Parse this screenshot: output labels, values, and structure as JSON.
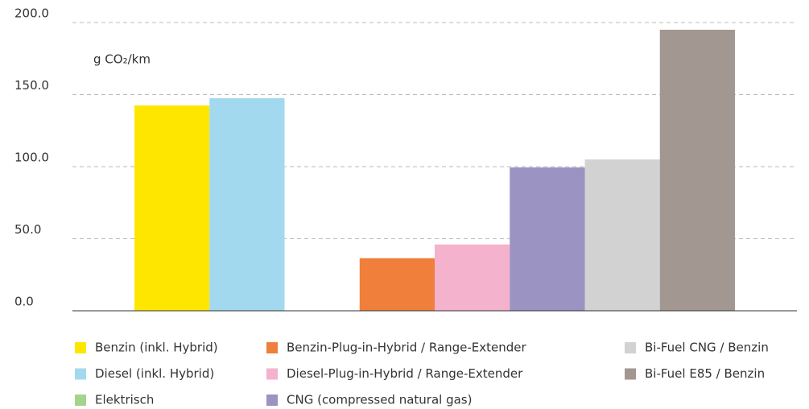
{
  "chart_data": {
    "type": "bar",
    "unit_label": "g CO₂/km",
    "ylim": [
      0,
      200
    ],
    "yticks": [
      {
        "value": 0,
        "label": "0.0"
      },
      {
        "value": 50,
        "label": "50.0"
      },
      {
        "value": 100,
        "label": "100.0"
      },
      {
        "value": 150,
        "label": "150.0"
      },
      {
        "value": 200,
        "label": "200.0"
      }
    ],
    "grid": true,
    "series": [
      {
        "name": "Benzin (inkl. Hybrid)",
        "color": "#ffe600",
        "values": [
          142.5
        ]
      },
      {
        "name": "Diesel (inkl. Hybrid)",
        "color": "#a3d9ee",
        "values": [
          147.5
        ]
      },
      {
        "name": "Elektrisch",
        "color": "#a5d38b",
        "values": [
          0
        ]
      },
      {
        "name": "Benzin-Plug-in-Hybrid / Range-Extender",
        "color": "#f07f3c",
        "values": [
          36.5
        ]
      },
      {
        "name": "Diesel-Plug-in-Hybrid / Range-Extender",
        "color": "#f5b2cc",
        "values": [
          46
        ]
      },
      {
        "name": "CNG (compressed natural gas)",
        "color": "#9b93c2",
        "values": [
          99.5
        ]
      },
      {
        "name": "Bi-Fuel CNG / Benzin",
        "color": "#d2d2d2",
        "values": [
          105
        ]
      },
      {
        "name": "Bi-Fuel E85 / Benzin",
        "color": "#a39791",
        "values": [
          195
        ]
      }
    ]
  }
}
